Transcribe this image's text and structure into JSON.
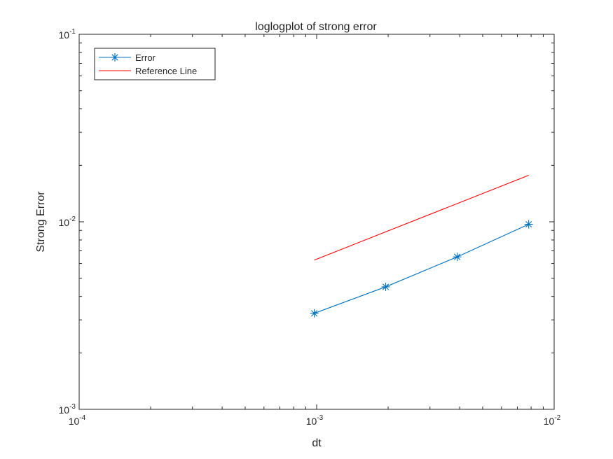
{
  "chart_data": {
    "type": "line",
    "title": "loglogplot of strong error",
    "xlabel": "dt",
    "ylabel": "Strong Error",
    "xscale": "log",
    "yscale": "log",
    "xlim": [
      0.0001,
      0.01
    ],
    "ylim": [
      0.001,
      0.1
    ],
    "x_ticks": [
      {
        "value": 0.0001,
        "base": "10",
        "exp": "-4"
      },
      {
        "value": 0.001,
        "base": "10",
        "exp": "-3"
      },
      {
        "value": 0.01,
        "base": "10",
        "exp": "-2"
      }
    ],
    "y_ticks": [
      {
        "value": 0.001,
        "base": "10",
        "exp": "-3"
      },
      {
        "value": 0.01,
        "base": "10",
        "exp": "-2"
      },
      {
        "value": 0.1,
        "base": "10",
        "exp": "-1"
      }
    ],
    "grid": false,
    "legend_position": "top-left",
    "series": [
      {
        "name": "Error",
        "color": "#0072BD",
        "marker": "asterisk",
        "x": [
          0.000977,
          0.001953,
          0.003906,
          0.007813
        ],
        "y": [
          0.00325,
          0.0045,
          0.0065,
          0.0097
        ]
      },
      {
        "name": "Reference Line",
        "color": "#FF0000",
        "marker": "none",
        "x": [
          0.000977,
          0.007813
        ],
        "y": [
          0.00625,
          0.0177
        ]
      }
    ]
  }
}
